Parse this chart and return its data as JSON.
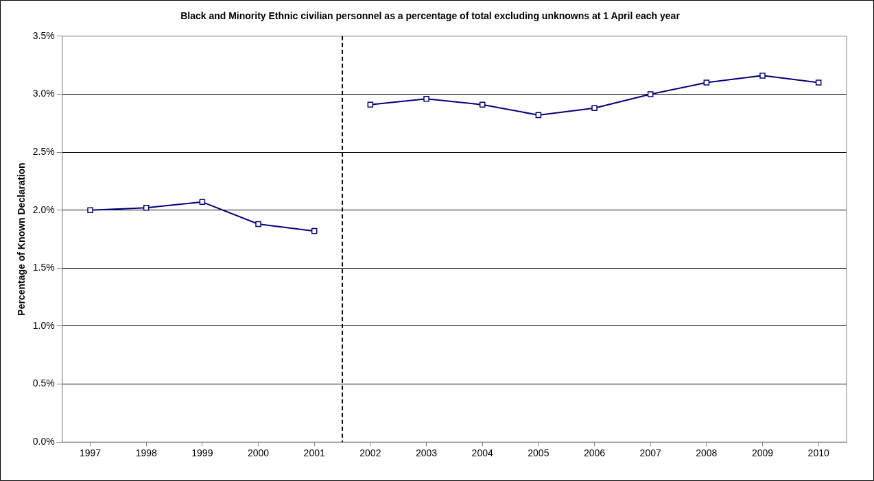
{
  "chart_data": {
    "type": "line",
    "title": "Black and Minority Ethnic civilian personnel as a percentage of total excluding unknowns at 1 April each year",
    "ylabel": "Percentage of Known Declaration",
    "series": [
      {
        "color": "#000080",
        "x": [
          1997,
          1998,
          1999,
          2000,
          2001
        ],
        "values": [
          2.0,
          2.02,
          2.07,
          1.88,
          1.82
        ]
      },
      {
        "color": "#000080",
        "x": [
          2002,
          2003,
          2004,
          2005,
          2006,
          2007,
          2008,
          2009,
          2010
        ],
        "values": [
          2.91,
          2.96,
          2.91,
          2.82,
          2.88,
          3.0,
          3.1,
          3.16,
          3.1
        ]
      }
    ],
    "xlim": [
      1996.5,
      2010.5
    ],
    "xticks": [
      1997,
      1998,
      1999,
      2000,
      2001,
      2002,
      2003,
      2004,
      2005,
      2006,
      2007,
      2008,
      2009,
      2010
    ],
    "ylim": [
      0,
      3.5
    ],
    "yticks": [
      {
        "value": 0,
        "label": "0.0%"
      },
      {
        "value": 0.5,
        "label": "0.5%"
      },
      {
        "value": 1,
        "label": "1.0%"
      },
      {
        "value": 1.5,
        "label": "1.5%"
      },
      {
        "value": 2,
        "label": "2.0%"
      },
      {
        "value": 2.5,
        "label": "2.5%"
      },
      {
        "value": 3,
        "label": "3.0%"
      },
      {
        "value": 3.5,
        "label": "3.5%"
      }
    ],
    "ref_lines": [
      {
        "axis": "x",
        "value": 2001.5,
        "color": "#000000",
        "line_style": "dashed"
      }
    ],
    "grid": "y",
    "legend": false,
    "marker": "square",
    "line_style": "solid"
  }
}
